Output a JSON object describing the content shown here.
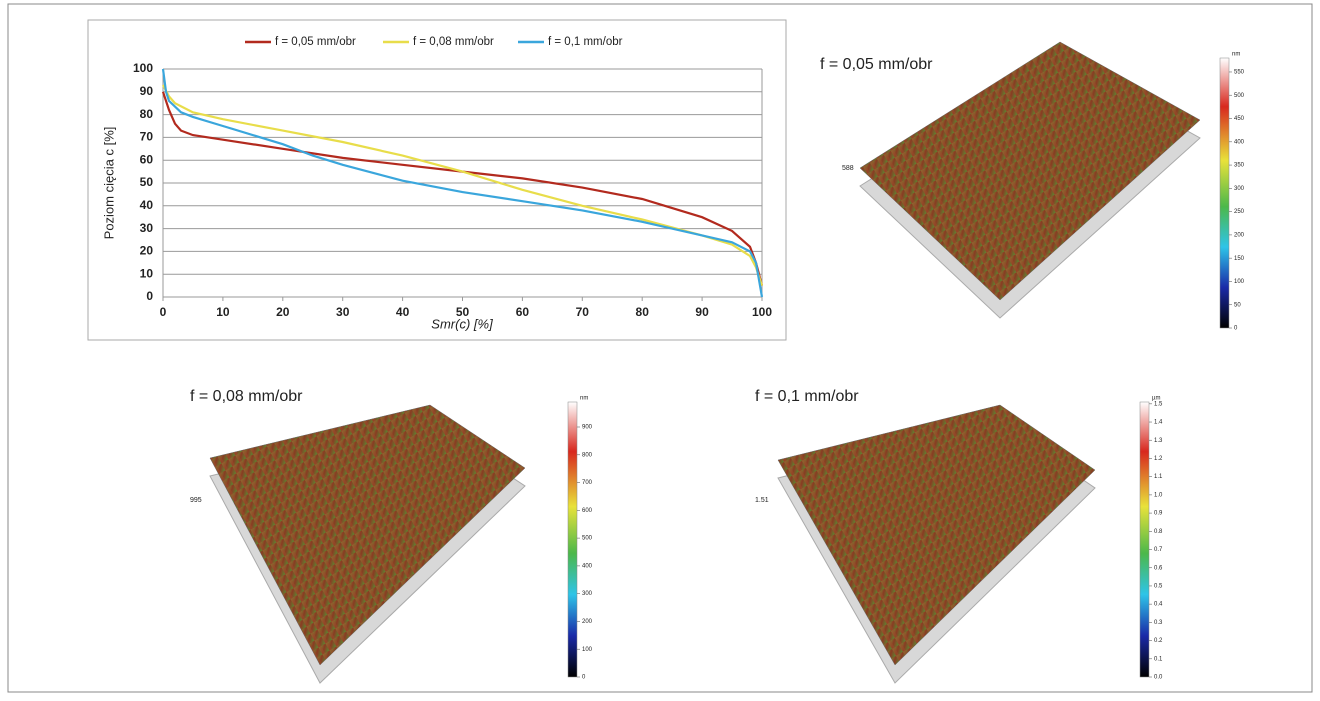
{
  "chart_data": [
    {
      "type": "line",
      "xlabel": "Smr(c) [%]",
      "ylabel": "Poziom cięcia c [%]",
      "xlim": [
        0,
        100
      ],
      "ylim": [
        0,
        100
      ],
      "xticks": [
        0,
        10,
        20,
        30,
        40,
        50,
        60,
        70,
        80,
        90,
        100
      ],
      "yticks": [
        0,
        10,
        20,
        30,
        40,
        50,
        60,
        70,
        80,
        90,
        100
      ],
      "grid": true,
      "legend": "top",
      "series": [
        {
          "name": "f = 0,05 mm/obr",
          "color": "#b22a1e",
          "x": [
            0,
            1,
            2,
            3,
            5,
            10,
            20,
            30,
            40,
            50,
            60,
            70,
            80,
            90,
            95,
            98,
            99,
            100
          ],
          "values": [
            90,
            82,
            76,
            73,
            71,
            69,
            65,
            61,
            58,
            55,
            52,
            48,
            43,
            35,
            29,
            22,
            15,
            5
          ]
        },
        {
          "name": "f = 0,08 mm/obr",
          "color": "#e8dd4a",
          "x": [
            0,
            1,
            2,
            5,
            10,
            20,
            30,
            40,
            50,
            60,
            70,
            80,
            90,
            95,
            98,
            99,
            100
          ],
          "values": [
            93,
            88,
            85,
            81,
            78,
            73,
            68,
            62,
            55,
            47,
            40,
            34,
            27,
            23,
            18,
            13,
            5
          ]
        },
        {
          "name": "f = 0,1 mm/obr",
          "color": "#3aa6dc",
          "x": [
            0,
            0.5,
            1,
            3,
            5,
            10,
            20,
            25,
            30,
            40,
            50,
            60,
            70,
            80,
            90,
            95,
            98,
            99,
            100
          ],
          "values": [
            100,
            90,
            86,
            81,
            79,
            75,
            67,
            62,
            58,
            51,
            46,
            42,
            38,
            33,
            27,
            24,
            20,
            15,
            0
          ]
        }
      ]
    },
    {
      "type": "surface",
      "title": "f = 0,05 mm/obr",
      "unit": "nm",
      "zmax_label": "588",
      "clim": [
        0,
        580
      ],
      "cticks": [
        0,
        50,
        100,
        150,
        200,
        250,
        300,
        350,
        400,
        450,
        500,
        550
      ]
    },
    {
      "type": "surface",
      "title": "f = 0,08 mm/obr",
      "unit": "nm",
      "zmax_label": "995",
      "clim": [
        0,
        990
      ],
      "cticks": [
        0,
        100,
        200,
        300,
        400,
        500,
        600,
        700,
        800,
        900
      ]
    },
    {
      "type": "surface",
      "title": "f = 0,1 mm/obr",
      "unit": "µm",
      "zmax_label": "1.51",
      "clim": [
        0,
        1.51
      ],
      "cticks": [
        {
          "value": 0,
          "label": "0.0"
        },
        0.1,
        0.2,
        0.3,
        0.4,
        0.5,
        0.6,
        0.7,
        0.8,
        0.9,
        {
          "value": 1,
          "label": "1.0"
        },
        1.1,
        1.2,
        1.3,
        1.4,
        1.5
      ]
    }
  ]
}
